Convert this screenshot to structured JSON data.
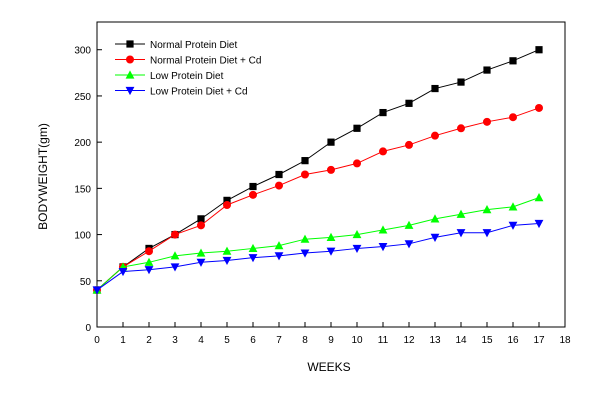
{
  "chart_data": {
    "type": "line",
    "xlabel": "WEEKS",
    "ylabel": "BODYWEIGHT(gm)",
    "xlim": [
      0,
      18
    ],
    "ylim": [
      0,
      330
    ],
    "x_ticks": [
      0,
      1,
      2,
      3,
      4,
      5,
      6,
      7,
      8,
      9,
      10,
      11,
      12,
      13,
      14,
      15,
      16,
      17,
      18
    ],
    "y_ticks": [
      0,
      50,
      100,
      150,
      200,
      250,
      300
    ],
    "grid": false,
    "legend_position": "top-left",
    "x": [
      0,
      1,
      2,
      3,
      4,
      5,
      6,
      7,
      8,
      9,
      10,
      11,
      12,
      13,
      14,
      15,
      16,
      17
    ],
    "series": [
      {
        "name": "Normal Protein Diet",
        "color": "#000000",
        "marker": "square",
        "values": [
          40,
          65,
          85,
          100,
          117,
          137,
          152,
          165,
          180,
          200,
          215,
          232,
          242,
          258,
          265,
          278,
          288,
          300
        ]
      },
      {
        "name": "Normal Protein Diet + Cd",
        "color": "#ff0000",
        "marker": "circle",
        "values": [
          40,
          65,
          82,
          100,
          110,
          132,
          143,
          153,
          165,
          170,
          177,
          190,
          197,
          207,
          215,
          222,
          227,
          237
        ]
      },
      {
        "name": "Low Protein Diet",
        "color": "#00ff00",
        "marker": "triangle-up",
        "values": [
          40,
          65,
          70,
          77,
          80,
          82,
          85,
          88,
          95,
          97,
          100,
          105,
          110,
          117,
          122,
          127,
          130,
          140
        ]
      },
      {
        "name": "Low Protein Diet + Cd",
        "color": "#0000ff",
        "marker": "triangle-down",
        "values": [
          40,
          60,
          62,
          65,
          70,
          72,
          75,
          77,
          80,
          82,
          85,
          87,
          90,
          97,
          102,
          102,
          110,
          112
        ]
      }
    ]
  }
}
